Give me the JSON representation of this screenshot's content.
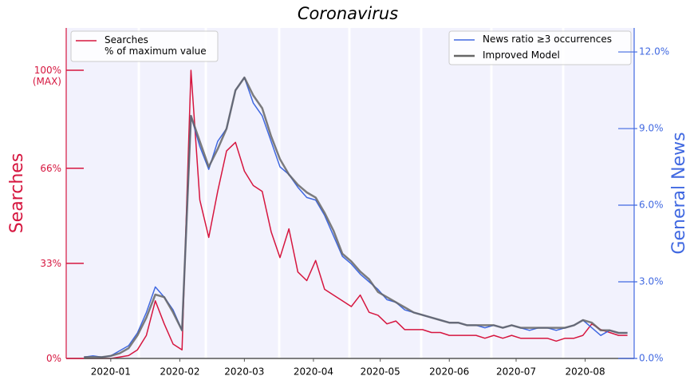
{
  "chart_data": {
    "type": "line",
    "title": "Coronavirus",
    "ylabel": "Searches",
    "y2label": "General News",
    "x": [
      "2019-12-20",
      "2019-12-24",
      "2019-12-28",
      "2020-01-01",
      "2020-01-05",
      "2020-01-09",
      "2020-01-13",
      "2020-01-17",
      "2020-01-21",
      "2020-01-25",
      "2020-01-29",
      "2020-02-02",
      "2020-02-06",
      "2020-02-10",
      "2020-02-14",
      "2020-02-18",
      "2020-02-22",
      "2020-02-26",
      "2020-03-01",
      "2020-03-05",
      "2020-03-09",
      "2020-03-13",
      "2020-03-17",
      "2020-03-21",
      "2020-03-25",
      "2020-03-29",
      "2020-04-02",
      "2020-04-06",
      "2020-04-10",
      "2020-04-14",
      "2020-04-18",
      "2020-04-22",
      "2020-04-26",
      "2020-04-30",
      "2020-05-04",
      "2020-05-08",
      "2020-05-12",
      "2020-05-16",
      "2020-05-20",
      "2020-05-24",
      "2020-05-28",
      "2020-06-01",
      "2020-06-05",
      "2020-06-09",
      "2020-06-13",
      "2020-06-17",
      "2020-06-21",
      "2020-06-25",
      "2020-06-29",
      "2020-07-03",
      "2020-07-07",
      "2020-07-11",
      "2020-07-15",
      "2020-07-19",
      "2020-07-23",
      "2020-07-27",
      "2020-07-31",
      "2020-08-04",
      "2020-08-08",
      "2020-08-12",
      "2020-08-16",
      "2020-08-20"
    ],
    "series": [
      {
        "name": "Searches\n% of maximum value",
        "color": "#d6163f",
        "width": 1.5,
        "values": [
          0,
          0,
          0,
          0,
          0.5,
          1,
          3,
          8,
          20,
          12,
          5,
          3,
          100,
          55,
          42,
          58,
          72,
          75,
          65,
          60,
          58,
          44,
          35,
          45,
          30,
          27,
          34,
          24,
          22,
          20,
          18,
          22,
          16,
          15,
          12,
          13,
          10,
          10,
          10,
          9,
          9,
          8,
          8,
          8,
          8,
          7,
          8,
          7,
          8,
          7,
          7,
          7,
          7,
          6,
          7,
          7,
          8,
          12,
          10,
          9,
          8,
          8
        ]
      },
      {
        "name": "News ratio ≥3 occurrences",
        "color": "#4169e1",
        "width": 1.5,
        "axis": "y2",
        "values": [
          0.05,
          0.1,
          0.05,
          0.1,
          0.3,
          0.5,
          1.0,
          1.8,
          2.8,
          2.4,
          1.9,
          1.1,
          9.5,
          8.3,
          7.4,
          8.5,
          9.0,
          10.5,
          11.0,
          10.0,
          9.5,
          8.5,
          7.5,
          7.2,
          6.7,
          6.3,
          6.2,
          5.6,
          4.8,
          4.0,
          3.7,
          3.3,
          3.0,
          2.7,
          2.3,
          2.2,
          1.9,
          1.8,
          1.7,
          1.6,
          1.5,
          1.4,
          1.4,
          1.3,
          1.3,
          1.2,
          1.3,
          1.2,
          1.3,
          1.2,
          1.1,
          1.2,
          1.2,
          1.1,
          1.2,
          1.3,
          1.5,
          1.2,
          0.9,
          1.1,
          1.0,
          1.0
        ]
      },
      {
        "name": "Improved Model",
        "color": "#666666",
        "width": 2.5,
        "axis": "y2",
        "values": [
          0.05,
          0.05,
          0.05,
          0.1,
          0.2,
          0.4,
          0.9,
          1.6,
          2.5,
          2.4,
          1.8,
          1.1,
          9.5,
          8.5,
          7.5,
          8.2,
          9.0,
          10.5,
          11.0,
          10.3,
          9.8,
          8.7,
          7.8,
          7.2,
          6.8,
          6.5,
          6.3,
          5.7,
          5.0,
          4.1,
          3.8,
          3.4,
          3.1,
          2.6,
          2.4,
          2.2,
          2.0,
          1.8,
          1.7,
          1.6,
          1.5,
          1.4,
          1.4,
          1.3,
          1.3,
          1.3,
          1.3,
          1.2,
          1.3,
          1.2,
          1.2,
          1.2,
          1.2,
          1.2,
          1.2,
          1.3,
          1.5,
          1.4,
          1.1,
          1.1,
          1.0,
          1.0
        ]
      }
    ],
    "xlim": [
      "2019-12-12",
      "2020-08-23"
    ],
    "xticks": [
      {
        "value": "2020-01-01",
        "label": "2020-01"
      },
      {
        "value": "2020-02-01",
        "label": "2020-02"
      },
      {
        "value": "2020-03-01",
        "label": "2020-03"
      },
      {
        "value": "2020-04-01",
        "label": "2020-04"
      },
      {
        "value": "2020-05-01",
        "label": "2020-05"
      },
      {
        "value": "2020-06-01",
        "label": "2020-06"
      },
      {
        "value": "2020-07-01",
        "label": "2020-07"
      },
      {
        "value": "2020-08-01",
        "label": "2020-08"
      }
    ],
    "ylim": [
      0,
      114.7
    ],
    "yticks": [
      {
        "value": 0,
        "label": "0%"
      },
      {
        "value": 33,
        "label": "33%"
      },
      {
        "value": 66,
        "label": "66%"
      },
      {
        "value": 100,
        "label": "100%\n(MAX)"
      }
    ],
    "y2lim": [
      0,
      12.94
    ],
    "y2ticks": [
      {
        "value": 0,
        "label": "0.0%"
      },
      {
        "value": 3,
        "label": "3.0%"
      },
      {
        "value": 6,
        "label": "6.0%"
      },
      {
        "value": 9,
        "label": "9.0%"
      },
      {
        "value": 12,
        "label": "12.0%"
      }
    ]
  }
}
